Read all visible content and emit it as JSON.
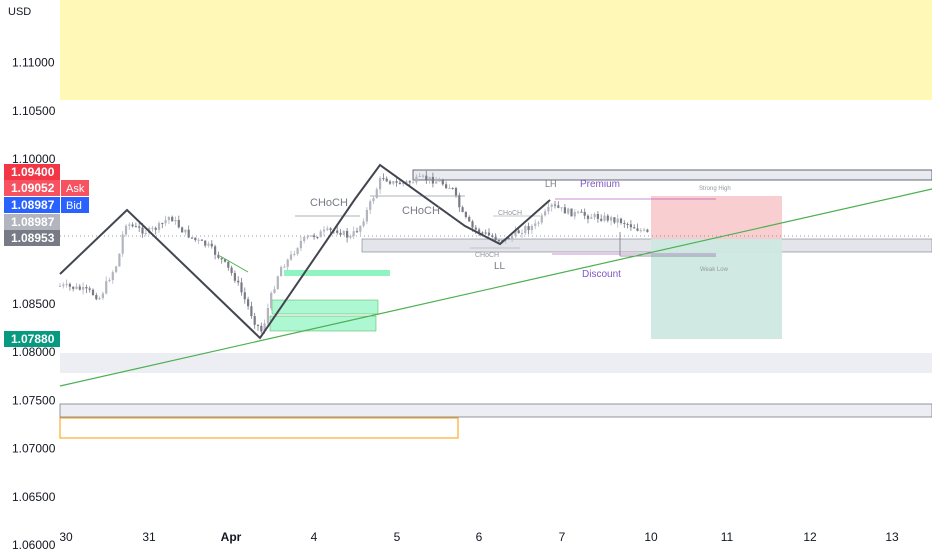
{
  "chart_data": {
    "type": "candlestick",
    "currency_label": "USD",
    "y_ticks": [
      "1.11000",
      "1.10500",
      "1.10000",
      "1.08500",
      "1.08000",
      "1.07500",
      "1.07000",
      "1.06500",
      "1.06000"
    ],
    "y_tick_values": [
      1.11,
      1.105,
      1.1,
      1.085,
      1.08,
      1.075,
      1.07,
      1.065,
      1.06
    ],
    "x_ticks": [
      "30",
      "31",
      "Apr",
      "4",
      "5",
      "6",
      "7",
      "10",
      "11",
      "12",
      "13"
    ],
    "ylim": [
      1.0595,
      1.1165
    ],
    "price_tags": [
      {
        "text": "1.09400",
        "value": 1.094,
        "color": "#f23645"
      },
      {
        "text": "1.09052",
        "value": 1.09052,
        "color": "#f7525f",
        "label": "Ask"
      },
      {
        "text": "1.08987",
        "value": 1.08987,
        "color": "#2962ff",
        "label": "Bid"
      },
      {
        "text": "1.08987",
        "value": 1.08987,
        "color": "#b2b5be"
      },
      {
        "text": "1.08953",
        "value": 1.08953,
        "color": "#787b86"
      },
      {
        "text": "1.07880",
        "value": 1.0788,
        "color": "#089981"
      }
    ],
    "annotations": {
      "choch_1": "CHoCH",
      "choch_2": "CHoCH",
      "choch_3": "CHoCH",
      "choch_4": "CHoCH",
      "lh": "LH",
      "ll": "LL",
      "premium": "Premium",
      "discount": "Discount",
      "strong_high": "Strong High",
      "weak_low": "Weak Low"
    },
    "colors": {
      "up": "#b2b5be",
      "down": "#787b86",
      "zigzag": "#434651",
      "trendline": "#4caf50",
      "supply_zone": "#fff59d",
      "demand_zone": "#69f0ae",
      "stop_zone": "#f7c9cc",
      "target_zone": "#cde9e1",
      "order_block": "#ff9800"
    }
  }
}
